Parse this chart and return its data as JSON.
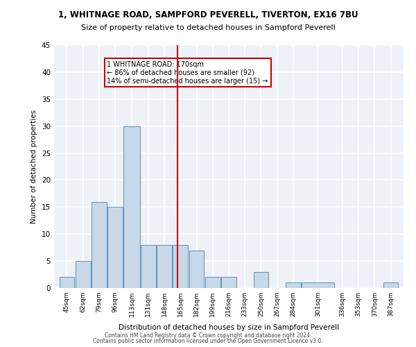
{
  "title1": "1, WHITNAGE ROAD, SAMPFORD PEVERELL, TIVERTON, EX16 7BU",
  "title2": "Size of property relative to detached houses in Sampford Peverell",
  "xlabel": "Distribution of detached houses by size in Sampford Peverell",
  "ylabel": "Number of detached properties",
  "bin_labels": [
    "45sqm",
    "62sqm",
    "79sqm",
    "96sqm",
    "113sqm",
    "131sqm",
    "148sqm",
    "165sqm",
    "182sqm",
    "199sqm",
    "216sqm",
    "233sqm",
    "250sqm",
    "267sqm",
    "284sqm",
    "301sqm",
    "336sqm",
    "353sqm",
    "370sqm",
    "387sqm"
  ],
  "bin_edges": [
    45,
    62,
    79,
    96,
    113,
    131,
    148,
    165,
    182,
    199,
    216,
    233,
    250,
    267,
    284,
    301,
    336,
    353,
    370,
    387,
    404
  ],
  "bar_heights": [
    2,
    5,
    16,
    15,
    30,
    8,
    8,
    8,
    7,
    2,
    2,
    0,
    3,
    0,
    1,
    1,
    0,
    0,
    0,
    1
  ],
  "bar_color": "#c8d8e8",
  "bar_edge_color": "#6699bb",
  "vline_x": 170,
  "vline_color": "#cc0000",
  "annotation_text": "1 WHITNAGE ROAD: 170sqm\n← 86% of detached houses are smaller (92)\n14% of semi-detached houses are larger (15) →",
  "annotation_box_color": "#ffffff",
  "annotation_box_edge_color": "#cc0000",
  "ylim": [
    0,
    45
  ],
  "yticks": [
    0,
    5,
    10,
    15,
    20,
    25,
    30,
    35,
    40,
    45
  ],
  "bg_color": "#eef2f8",
  "grid_color": "#ffffff",
  "footer1": "Contains HM Land Registry data © Crown copyright and database right 2024.",
  "footer2": "Contains public sector information licensed under the Open Government Licence v3.0."
}
